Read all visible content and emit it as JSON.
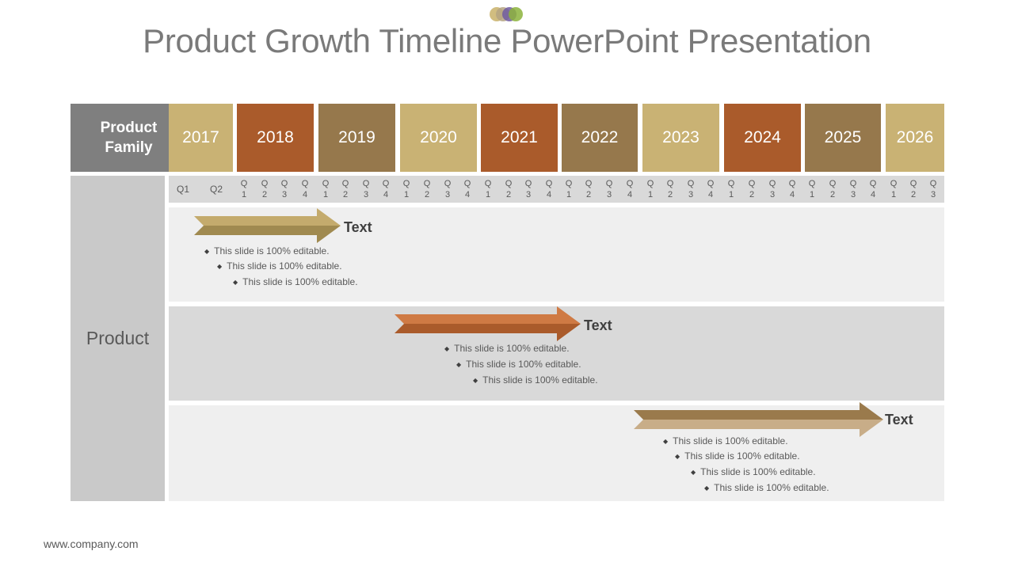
{
  "slide": {
    "title": "Product Growth Timeline PowerPoint Presentation",
    "footer": "www.company.com",
    "logo_colors": [
      "#c9b26a",
      "#b5a483",
      "#6e5aa0",
      "#8cb33c"
    ]
  },
  "table": {
    "family_header": "Product Family",
    "row_header": "Product",
    "years": [
      {
        "label": "2017",
        "color": "#c9b274"
      },
      {
        "label": "2018",
        "color": "#aa5b2b"
      },
      {
        "label": "2019",
        "color": "#96784c"
      },
      {
        "label": "2020",
        "color": "#c9b274"
      },
      {
        "label": "2021",
        "color": "#aa5b2b"
      },
      {
        "label": "2022",
        "color": "#96784c"
      },
      {
        "label": "2023",
        "color": "#c9b274"
      },
      {
        "label": "2024",
        "color": "#aa5b2b"
      },
      {
        "label": "2025",
        "color": "#96784c"
      },
      {
        "label": "2026",
        "color": "#c9b274"
      }
    ],
    "quarters": [
      "Q1",
      "Q2",
      "Q\n1",
      "Q\n2",
      "Q\n3",
      "Q\n4",
      "Q\n1",
      "Q\n2",
      "Q\n3",
      "Q\n4",
      "Q\n1",
      "Q\n2",
      "Q\n3",
      "Q\n4",
      "Q\n1",
      "Q\n2",
      "Q\n3",
      "Q\n4",
      "Q\n1",
      "Q\n2",
      "Q\n3",
      "Q\n4",
      "Q\n1",
      "Q\n2",
      "Q\n3",
      "Q\n4",
      "Q\n1",
      "Q\n2",
      "Q\n3",
      "Q\n4",
      "Q\n1",
      "Q\n2",
      "Q\n3",
      "Q\n4",
      "Q\n1",
      "Q\n2",
      "Q\n3"
    ]
  },
  "rows": [
    {
      "title": "Text",
      "band_color": "#efefef",
      "arrow_colors": [
        "#c4ab6d",
        "#a08a50"
      ],
      "bullets": [
        "This slide is 100% editable.",
        "This slide is 100% editable.",
        "This slide is 100% editable."
      ]
    },
    {
      "title": "Text",
      "band_color": "#d9d9d9",
      "arrow_colors": [
        "#cf7a44",
        "#aa5b2b"
      ],
      "bullets": [
        "This slide is 100% editable.",
        "This slide is 100% editable.",
        "This slide is 100% editable."
      ]
    },
    {
      "title": "Text",
      "band_color": "#efefef",
      "arrow_colors": [
        "#9a7a4c",
        "#c8ad88"
      ],
      "bullets": [
        "This slide is 100% editable.",
        "This slide is 100% editable.",
        "This slide is 100% editable.",
        "This slide is 100% editable."
      ]
    }
  ]
}
